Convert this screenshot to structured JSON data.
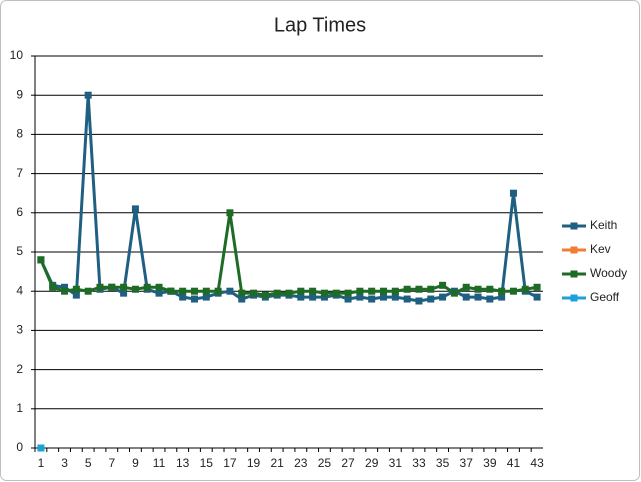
{
  "chart_data": {
    "type": "line",
    "title": "Lap Times",
    "categories": [
      1,
      null,
      3,
      null,
      5,
      null,
      7,
      null,
      9,
      null,
      11,
      null,
      13,
      null,
      15,
      null,
      17,
      null,
      19,
      null,
      21,
      null,
      23,
      null,
      25,
      null,
      27,
      null,
      29,
      null,
      31,
      null,
      33,
      null,
      35,
      null,
      37,
      null,
      39,
      null,
      41,
      null,
      43
    ],
    "series": [
      {
        "name": "Keith",
        "color": "#1f5f82",
        "values": [
          4.8,
          4.15,
          4.1,
          3.9,
          9.0,
          4.05,
          4.1,
          3.95,
          6.1,
          4.05,
          3.95,
          4.0,
          3.85,
          3.8,
          3.85,
          3.95,
          4.0,
          3.8,
          3.9,
          3.85,
          3.9,
          3.9,
          3.85,
          3.85,
          3.85,
          3.9,
          3.8,
          3.85,
          3.8,
          3.85,
          3.85,
          3.8,
          3.75,
          3.8,
          3.85,
          4.0,
          3.85,
          3.85,
          3.8,
          3.85,
          6.5,
          4.0,
          3.85
        ]
      },
      {
        "name": "Kev",
        "color": "#f07d33",
        "values": [
          null,
          null,
          null,
          null,
          null,
          null,
          null,
          null,
          null,
          null,
          null,
          null,
          null,
          null,
          null,
          null,
          null,
          null,
          null,
          null,
          null,
          null,
          null,
          null,
          null,
          null,
          null,
          null,
          null,
          null,
          null,
          null,
          null,
          null,
          null,
          null,
          null,
          null,
          null,
          null,
          null,
          null,
          null
        ]
      },
      {
        "name": "Woody",
        "color": "#1e6b26",
        "values": [
          4.8,
          4.1,
          4.0,
          4.05,
          4.0,
          4.1,
          4.1,
          4.1,
          4.05,
          4.1,
          4.1,
          4.0,
          4.0,
          4.0,
          4.0,
          4.0,
          6.0,
          3.95,
          3.95,
          3.9,
          3.95,
          3.95,
          4.0,
          4.0,
          3.95,
          3.95,
          3.95,
          4.0,
          4.0,
          4.0,
          4.0,
          4.05,
          4.05,
          4.05,
          4.15,
          3.95,
          4.1,
          4.05,
          4.05,
          4.0,
          4.0,
          4.05,
          4.1
        ]
      },
      {
        "name": "Geoff",
        "color": "#1ea0d8",
        "values": [
          0,
          null,
          null,
          null,
          null,
          null,
          null,
          null,
          null,
          null,
          null,
          null,
          null,
          null,
          null,
          null,
          null,
          null,
          null,
          null,
          null,
          null,
          null,
          null,
          null,
          null,
          null,
          null,
          null,
          null,
          null,
          null,
          null,
          null,
          null,
          null,
          null,
          null,
          null,
          null,
          null,
          null,
          null
        ]
      }
    ],
    "ylim": [
      0,
      10
    ],
    "yticks": [
      0,
      1,
      2,
      3,
      4,
      5,
      6,
      7,
      8,
      9,
      10
    ],
    "grid": true,
    "legend": "right"
  }
}
